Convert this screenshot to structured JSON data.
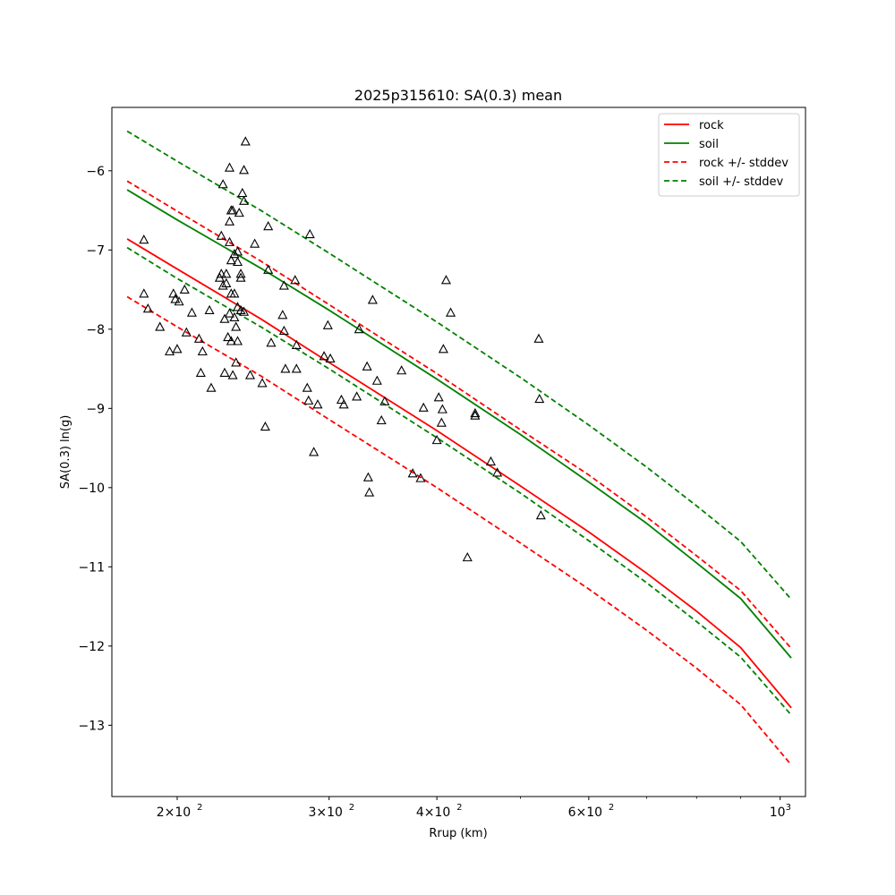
{
  "chart_data": {
    "type": "scatter",
    "title": "2025p315610: SA(0.3) mean",
    "xlabel": "Rrup (km)",
    "ylabel": "SA(0.3) ln(g)",
    "x_scale": "log",
    "xlim": [
      168,
      1070
    ],
    "ylim": [
      -13.9,
      -5.2
    ],
    "x_ticks": [
      {
        "value": 200,
        "base": "2",
        "exp": "2"
      },
      {
        "value": 300,
        "base": "3",
        "exp": "2"
      },
      {
        "value": 400,
        "base": "4",
        "exp": "2"
      },
      {
        "value": 600,
        "base": "6",
        "exp": "2"
      },
      {
        "value": 1000,
        "base": "",
        "exp": "3"
      }
    ],
    "x_minor_ticks": [
      500,
      700,
      800,
      900
    ],
    "y_ticks": [
      {
        "value": -6,
        "label": "−6"
      },
      {
        "value": -7,
        "label": "−7"
      },
      {
        "value": -8,
        "label": "−8"
      },
      {
        "value": -9,
        "label": "−9"
      },
      {
        "value": -10,
        "label": "−10"
      },
      {
        "value": -11,
        "label": "−11"
      },
      {
        "value": -12,
        "label": "−12"
      },
      {
        "value": -13,
        "label": "−13"
      }
    ],
    "grid": false,
    "legend_position": "top-right",
    "x": [
      175,
      200,
      250,
      300,
      400,
      500,
      600,
      700,
      800,
      900,
      1030
    ],
    "series": [
      {
        "name": "rock",
        "color": "#ff0000",
        "dash": false,
        "values": [
          -6.86,
          -7.24,
          -7.87,
          -8.42,
          -9.28,
          -9.98,
          -10.56,
          -11.08,
          -11.56,
          -12.02,
          -12.78
        ]
      },
      {
        "name": "soil",
        "color": "#008000",
        "dash": false,
        "values": [
          -6.24,
          -6.62,
          -7.23,
          -7.76,
          -8.63,
          -9.33,
          -9.93,
          -10.45,
          -10.95,
          -11.4,
          -12.15
        ]
      },
      {
        "name": "rock +/- stddev",
        "color": "#ff0000",
        "dash": true,
        "values": [
          -6.13,
          -6.51,
          -7.14,
          -7.69,
          -8.56,
          -9.27,
          -9.84,
          -10.37,
          -10.86,
          -11.3,
          -12.03
        ]
      },
      {
        "name": "",
        "color": "#ff0000",
        "dash": true,
        "values": [
          -7.59,
          -7.97,
          -8.59,
          -9.14,
          -10.0,
          -10.7,
          -11.28,
          -11.8,
          -12.28,
          -12.74,
          -13.5
        ]
      },
      {
        "name": "soil +/- stddev",
        "color": "#008000",
        "dash": true,
        "values": [
          -5.5,
          -5.88,
          -6.5,
          -7.04,
          -7.91,
          -8.61,
          -9.21,
          -9.74,
          -10.23,
          -10.68,
          -11.41
        ]
      },
      {
        "name": "",
        "color": "#008000",
        "dash": true,
        "values": [
          -6.97,
          -7.36,
          -7.97,
          -8.5,
          -9.37,
          -10.07,
          -10.67,
          -11.2,
          -11.69,
          -12.14,
          -12.87
        ]
      }
    ],
    "observations": [
      [
        183,
        -6.87
      ],
      [
        183,
        -7.55
      ],
      [
        185,
        -7.74
      ],
      [
        191,
        -7.97
      ],
      [
        196,
        -8.28
      ],
      [
        198,
        -7.55
      ],
      [
        199,
        -7.62
      ],
      [
        200,
        -8.25
      ],
      [
        201,
        -7.65
      ],
      [
        204,
        -7.5
      ],
      [
        205,
        -8.04
      ],
      [
        208,
        -7.79
      ],
      [
        212,
        -8.12
      ],
      [
        213,
        -8.55
      ],
      [
        214,
        -8.28
      ],
      [
        218,
        -7.76
      ],
      [
        219,
        -8.74
      ],
      [
        224,
        -7.35
      ],
      [
        225,
        -6.82
      ],
      [
        225,
        -7.3
      ],
      [
        226,
        -6.17
      ],
      [
        226,
        -7.45
      ],
      [
        227,
        -7.87
      ],
      [
        227,
        -8.55
      ],
      [
        228,
        -7.42
      ],
      [
        228,
        -7.3
      ],
      [
        229,
        -8.1
      ],
      [
        230,
        -5.96
      ],
      [
        230,
        -6.64
      ],
      [
        230,
        -6.9
      ],
      [
        230,
        -7.8
      ],
      [
        231,
        -6.5
      ],
      [
        231,
        -7.13
      ],
      [
        231,
        -7.55
      ],
      [
        231,
        -8.15
      ],
      [
        232,
        -8.58
      ],
      [
        232,
        -6.5
      ],
      [
        233,
        -7.05
      ],
      [
        233,
        -7.55
      ],
      [
        233,
        -7.85
      ],
      [
        234,
        -8.42
      ],
      [
        234,
        -7.97
      ],
      [
        235,
        -8.15
      ],
      [
        235,
        -7.72
      ],
      [
        235,
        -7.02
      ],
      [
        235,
        -7.15
      ],
      [
        236,
        -6.53
      ],
      [
        237,
        -7.35
      ],
      [
        237,
        -7.3
      ],
      [
        237,
        -7.76
      ],
      [
        238,
        -6.28
      ],
      [
        239,
        -6.38
      ],
      [
        239,
        -7.78
      ],
      [
        239,
        -5.99
      ],
      [
        240,
        -5.63
      ],
      [
        243,
        -8.58
      ],
      [
        246,
        -6.92
      ],
      [
        251,
        -8.68
      ],
      [
        253,
        -9.23
      ],
      [
        255,
        -6.7
      ],
      [
        255,
        -7.25
      ],
      [
        257,
        -8.17
      ],
      [
        265,
        -7.82
      ],
      [
        266,
        -7.45
      ],
      [
        266,
        -8.02
      ],
      [
        267,
        -8.5
      ],
      [
        274,
        -7.38
      ],
      [
        275,
        -8.5
      ],
      [
        275,
        -8.2
      ],
      [
        283,
        -8.74
      ],
      [
        284,
        -8.9
      ],
      [
        285,
        -6.8
      ],
      [
        288,
        -9.55
      ],
      [
        291,
        -8.95
      ],
      [
        296,
        -8.34
      ],
      [
        299,
        -7.95
      ],
      [
        301,
        -8.37
      ],
      [
        310,
        -8.89
      ],
      [
        312,
        -8.95
      ],
      [
        323,
        -8.85
      ],
      [
        325,
        -8.0
      ],
      [
        332,
        -8.47
      ],
      [
        333,
        -9.87
      ],
      [
        334,
        -10.06
      ],
      [
        337,
        -7.63
      ],
      [
        341,
        -8.65
      ],
      [
        345,
        -9.15
      ],
      [
        348,
        -8.91
      ],
      [
        364,
        -8.52
      ],
      [
        375,
        -9.82
      ],
      [
        383,
        -9.88
      ],
      [
        386,
        -8.99
      ],
      [
        400,
        -9.4
      ],
      [
        402,
        -8.86
      ],
      [
        405,
        -9.18
      ],
      [
        406,
        -9.01
      ],
      [
        407,
        -8.25
      ],
      [
        410,
        -7.38
      ],
      [
        415,
        -7.79
      ],
      [
        434,
        -10.88
      ],
      [
        443,
        -9.09
      ],
      [
        443,
        -9.06
      ],
      [
        462,
        -9.67
      ],
      [
        470,
        -9.81
      ],
      [
        525,
        -8.12
      ],
      [
        526,
        -8.88
      ],
      [
        528,
        -10.35
      ]
    ]
  }
}
